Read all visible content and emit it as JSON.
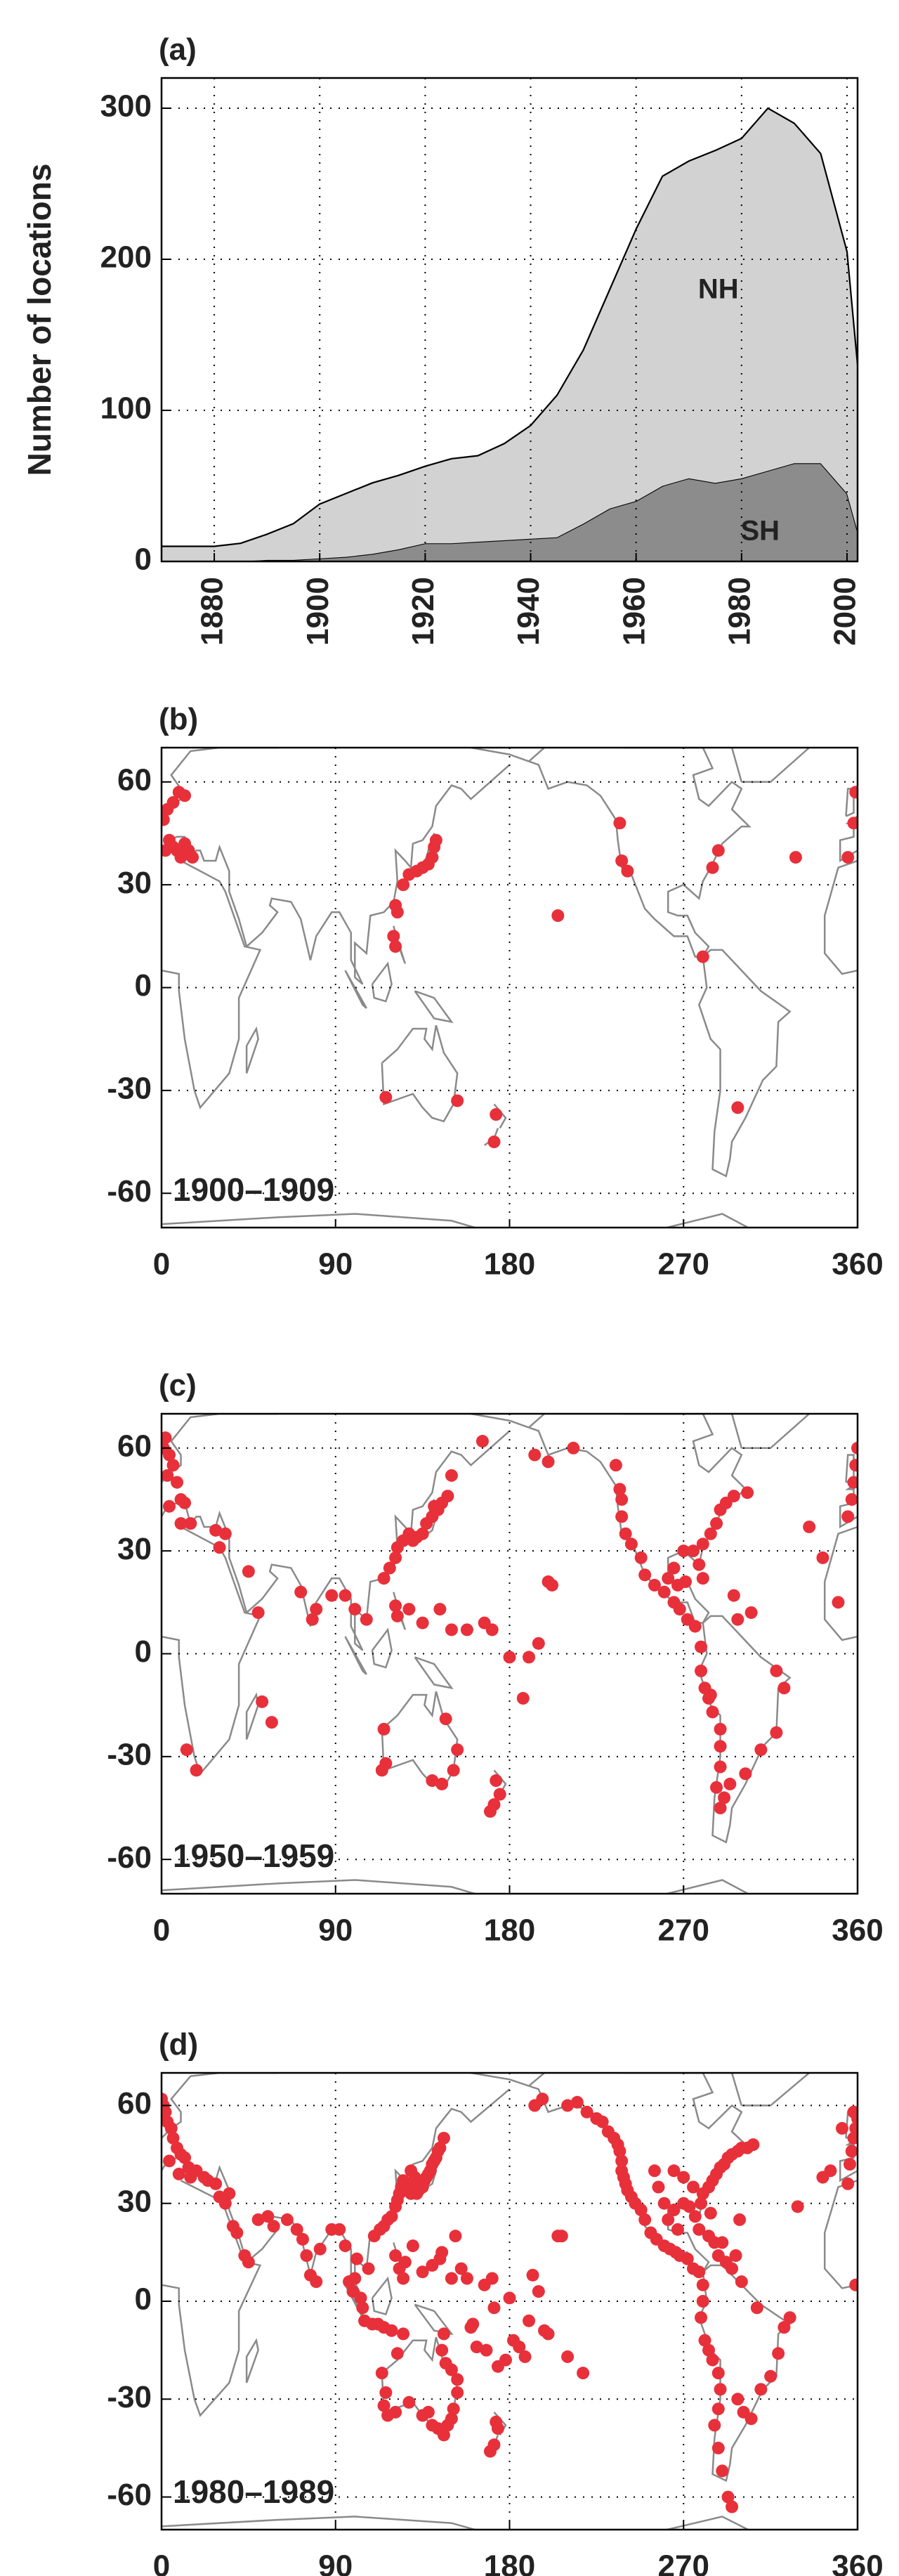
{
  "chart_data": [
    {
      "type": "area",
      "panel_label": "(a)",
      "ylabel": "Number of locations",
      "x": [
        1870,
        1875,
        1880,
        1885,
        1890,
        1895,
        1900,
        1905,
        1910,
        1915,
        1920,
        1925,
        1930,
        1935,
        1940,
        1945,
        1950,
        1955,
        1960,
        1965,
        1970,
        1975,
        1980,
        1985,
        1990,
        1995,
        2000,
        2002
      ],
      "series": [
        {
          "name": "SH",
          "color": "#8c8c8c",
          "values": [
            0,
            0,
            0,
            0,
            1,
            1,
            2,
            3,
            5,
            8,
            12,
            12,
            13,
            14,
            15,
            16,
            25,
            35,
            40,
            50,
            55,
            52,
            55,
            60,
            65,
            65,
            45,
            20
          ]
        },
        {
          "name": "NH",
          "color": "#d2d2d2",
          "values": [
            10,
            10,
            10,
            12,
            17,
            24,
            36,
            42,
            47,
            49,
            51,
            56,
            57,
            64,
            75,
            94,
            115,
            145,
            180,
            205,
            210,
            220,
            225,
            240,
            225,
            205,
            160,
            110
          ]
        }
      ],
      "xlim": [
        1870,
        2002
      ],
      "ylim": [
        0,
        320
      ],
      "xticks": [
        1880,
        1900,
        1920,
        1940,
        1960,
        1980,
        2000
      ],
      "yticks": [
        0,
        100,
        200,
        300
      ],
      "grid": true
    },
    {
      "type": "scatter",
      "panel_label": "(b)",
      "label": "1900–1909",
      "color": "#e8303a",
      "x": [
        1,
        3,
        6,
        9,
        12,
        4,
        6,
        8,
        10,
        12,
        14,
        16,
        2,
        122,
        121,
        125,
        128,
        132,
        135,
        138,
        140,
        141,
        142,
        120,
        121,
        116,
        153,
        173,
        172,
        205,
        237,
        238,
        241,
        285,
        288,
        280,
        298,
        328,
        355,
        358,
        359
      ],
      "values": [
        49,
        52,
        54,
        57,
        56,
        43,
        41,
        40,
        38,
        42,
        40,
        38,
        40,
        22,
        24,
        30,
        33,
        34,
        35,
        36,
        38,
        41,
        43,
        15,
        12,
        -32,
        -33,
        -37,
        -45,
        21,
        48,
        37,
        34,
        35,
        40,
        9,
        -35,
        38,
        38,
        48,
        57
      ],
      "xlim": [
        0,
        360
      ],
      "ylim": [
        -70,
        70
      ],
      "xticks": [
        0,
        90,
        180,
        270,
        360
      ],
      "yticks": [
        -60,
        -30,
        0,
        30,
        60
      ],
      "grid": true
    },
    {
      "type": "scatter",
      "panel_label": "(c)",
      "label": "1950–1959",
      "color": "#e8303a",
      "x": [
        1,
        2,
        4,
        6,
        3,
        8,
        10,
        4,
        12,
        10,
        15,
        30,
        33,
        28,
        45,
        50,
        52,
        57,
        18,
        13,
        72,
        78,
        80,
        88,
        95,
        100,
        106,
        115,
        118,
        121,
        122,
        125,
        128,
        130,
        132,
        135,
        137,
        140,
        141,
        143,
        145,
        148,
        150,
        166,
        121,
        122,
        128,
        135,
        144,
        150,
        158,
        167,
        171,
        180,
        187,
        190,
        195,
        200,
        202,
        193,
        200,
        213,
        235,
        237,
        238,
        238,
        240,
        243,
        248,
        250,
        255,
        260,
        265,
        268,
        272,
        276,
        279,
        279,
        281,
        283,
        285,
        289,
        289,
        289,
        287,
        289,
        291,
        294,
        302,
        310,
        318,
        322,
        318,
        284,
        270,
        275,
        278,
        280,
        284,
        287,
        289,
        292,
        296,
        303,
        267,
        271,
        280,
        265,
        262,
        296,
        298,
        305,
        335,
        342,
        350,
        355,
        357,
        358,
        359,
        360,
        116,
        145,
        151,
        153,
        147,
        140,
        115,
        173,
        175,
        172,
        170,
        114
      ],
      "values": [
        60,
        63,
        58,
        55,
        52,
        50,
        45,
        43,
        44,
        38,
        38,
        31,
        35,
        36,
        24,
        12,
        -14,
        -20,
        -34,
        -28,
        18,
        10,
        13,
        17,
        17,
        13,
        10,
        22,
        25,
        28,
        31,
        33,
        35,
        33,
        34,
        35,
        38,
        40,
        43,
        42,
        44,
        46,
        52,
        62,
        14,
        11,
        13,
        9,
        13,
        7,
        7,
        9,
        7,
        -1,
        -13,
        -1,
        3,
        21,
        20,
        58,
        56,
        60,
        55,
        48,
        45,
        40,
        35,
        32,
        28,
        23,
        20,
        18,
        15,
        13,
        10,
        8,
        2,
        -5,
        -10,
        -13,
        -17,
        -22,
        -27,
        -33,
        -39,
        -45,
        -42,
        -38,
        -35,
        -28,
        -23,
        -10,
        -5,
        -12,
        30,
        30,
        26,
        32,
        35,
        38,
        42,
        44,
        46,
        47,
        20,
        21,
        22,
        25,
        22,
        17,
        10,
        12,
        37,
        28,
        15,
        40,
        45,
        50,
        55,
        60,
        -32,
        -38,
        -34,
        -28,
        -19,
        -37,
        -22,
        -37,
        -41,
        -44,
        -46,
        -34
      ],
      "xlim": [
        0,
        360
      ],
      "ylim": [
        -70,
        70
      ],
      "xticks": [
        0,
        90,
        180,
        270,
        360
      ],
      "yticks": [
        -60,
        -30,
        0,
        30,
        60
      ],
      "grid": true
    },
    {
      "type": "scatter",
      "panel_label": "(d)",
      "label": "1980–1989",
      "color": "#e8303a",
      "x": [
        0,
        1,
        2,
        3,
        5,
        6,
        8,
        10,
        4,
        12,
        14,
        9,
        15,
        18,
        22,
        24,
        28,
        30,
        33,
        35,
        37,
        39,
        43,
        45,
        50,
        55,
        58,
        65,
        70,
        73,
        75,
        77,
        80,
        82,
        88,
        92,
        95,
        97,
        99,
        100,
        101,
        103,
        104,
        105,
        107,
        110,
        113,
        115,
        117,
        119,
        121,
        122,
        123,
        124,
        125,
        126,
        127,
        128,
        129,
        130,
        131,
        132,
        133,
        134,
        135,
        136,
        137,
        138,
        139,
        140,
        141,
        142,
        143,
        144,
        146,
        131,
        129,
        121,
        123,
        125,
        126,
        130,
        135,
        140,
        144,
        145,
        150,
        152,
        155,
        158,
        160,
        163,
        167,
        168,
        171,
        172,
        174,
        178,
        180,
        182,
        185,
        188,
        190,
        192,
        195,
        198,
        200,
        205,
        207,
        210,
        218,
        119,
        115,
        112,
        109,
        125,
        122,
        114,
        116,
        115,
        117,
        121,
        128,
        135,
        138,
        140,
        143,
        146,
        148,
        150,
        151,
        153,
        153,
        150,
        147,
        145,
        146,
        173,
        174,
        172,
        170,
        161,
        193,
        197,
        210,
        215,
        220,
        225,
        228,
        231,
        234,
        236,
        237,
        238,
        238,
        239,
        240,
        241,
        243,
        245,
        248,
        250,
        253,
        256,
        260,
        263,
        266,
        268,
        272,
        275,
        278,
        280,
        280,
        279,
        281,
        283,
        285,
        288,
        289,
        288,
        286,
        288,
        290,
        293,
        295,
        298,
        301,
        305,
        310,
        315,
        319,
        322,
        325,
        308,
        300,
        295,
        292,
        290,
        286,
        283,
        278,
        276,
        273,
        270,
        265,
        262,
        267,
        279,
        280,
        283,
        285,
        287,
        289,
        291,
        293,
        295,
        298,
        300,
        303,
        306,
        260,
        257,
        255,
        265,
        270,
        275,
        284,
        288,
        297,
        299,
        329,
        342,
        346,
        355,
        356,
        357,
        358,
        359,
        360,
        358,
        352,
        359
      ],
      "values": [
        62,
        60,
        58,
        55,
        53,
        50,
        47,
        45,
        43,
        44,
        41,
        39,
        38,
        40,
        38,
        37,
        36,
        32,
        30,
        33,
        23,
        21,
        14,
        12,
        25,
        26,
        23,
        25,
        22,
        19,
        14,
        8,
        6,
        16,
        22,
        22,
        17,
        6,
        3,
        7,
        13,
        1,
        -2,
        -6,
        10,
        20,
        22,
        23,
        25,
        26,
        29,
        31,
        33,
        35,
        37,
        34,
        36,
        35,
        33,
        34,
        35,
        33,
        34,
        36,
        35,
        37,
        38,
        39,
        40,
        42,
        43,
        44,
        46,
        47,
        50,
        38,
        40,
        14,
        10,
        7,
        12,
        17,
        9,
        11,
        13,
        15,
        7,
        20,
        10,
        7,
        -8,
        -14,
        5,
        -15,
        7,
        -2,
        -20,
        -18,
        1,
        -12,
        -14,
        -17,
        -6,
        8,
        3,
        -9,
        -10,
        20,
        20,
        -17,
        -22,
        -9,
        -8,
        -7,
        -7,
        -10,
        -16,
        -22,
        -28,
        -32,
        -35,
        -34,
        -31,
        -35,
        -34,
        -38,
        -39,
        -41,
        -38,
        -36,
        -33,
        -28,
        -24,
        -21,
        -19,
        -15,
        -10,
        -37,
        -39,
        -44,
        -46,
        -7,
        60,
        62,
        60,
        61,
        58,
        56,
        55,
        52,
        50,
        48,
        46,
        43,
        40,
        38,
        36,
        34,
        32,
        30,
        28,
        25,
        21,
        19,
        17,
        16,
        15,
        14,
        13,
        10,
        9,
        5,
        0,
        -5,
        -12,
        -15,
        -18,
        -22,
        -27,
        -33,
        -38,
        -45,
        -52,
        -60,
        -63,
        -30,
        -34,
        -36,
        -27,
        -23,
        -16,
        -8,
        -5,
        -2,
        6,
        10,
        12,
        18,
        18,
        20,
        22,
        26,
        29,
        30,
        28,
        25,
        22,
        30,
        33,
        35,
        37,
        39,
        41,
        42,
        44,
        45,
        46,
        47,
        47,
        48,
        30,
        35,
        40,
        40,
        38,
        35,
        27,
        14,
        14,
        25,
        29,
        38,
        40,
        36,
        42,
        46,
        50,
        53,
        56,
        58,
        53,
        5
      ],
      "xlim": [
        0,
        360
      ],
      "ylim": [
        -70,
        70
      ],
      "xticks": [
        0,
        90,
        180,
        270,
        360
      ],
      "yticks": [
        -60,
        -30,
        0,
        30,
        60
      ],
      "grid": true
    }
  ]
}
